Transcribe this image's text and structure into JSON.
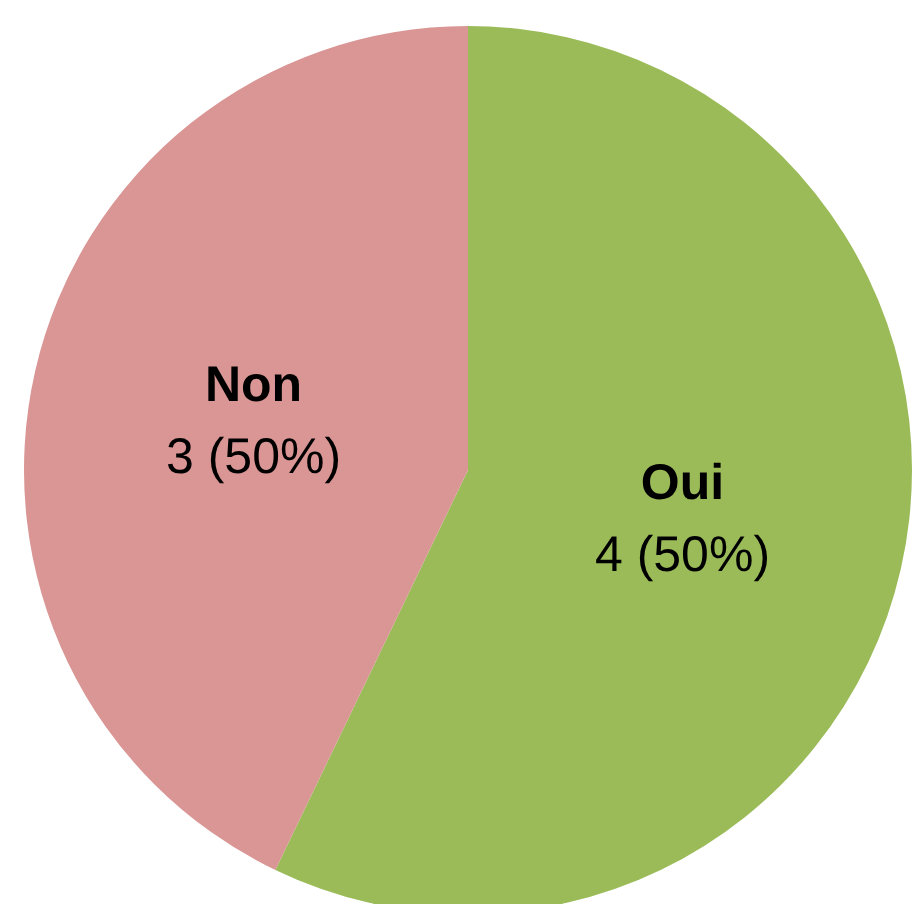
{
  "chart_data": {
    "type": "pie",
    "categories": [
      "Oui",
      "Non"
    ],
    "values": [
      4,
      3
    ],
    "value_labels": [
      "4 (50%)",
      "3 (50%)"
    ],
    "colors": [
      "#9bbb59",
      "#d99694"
    ]
  }
}
